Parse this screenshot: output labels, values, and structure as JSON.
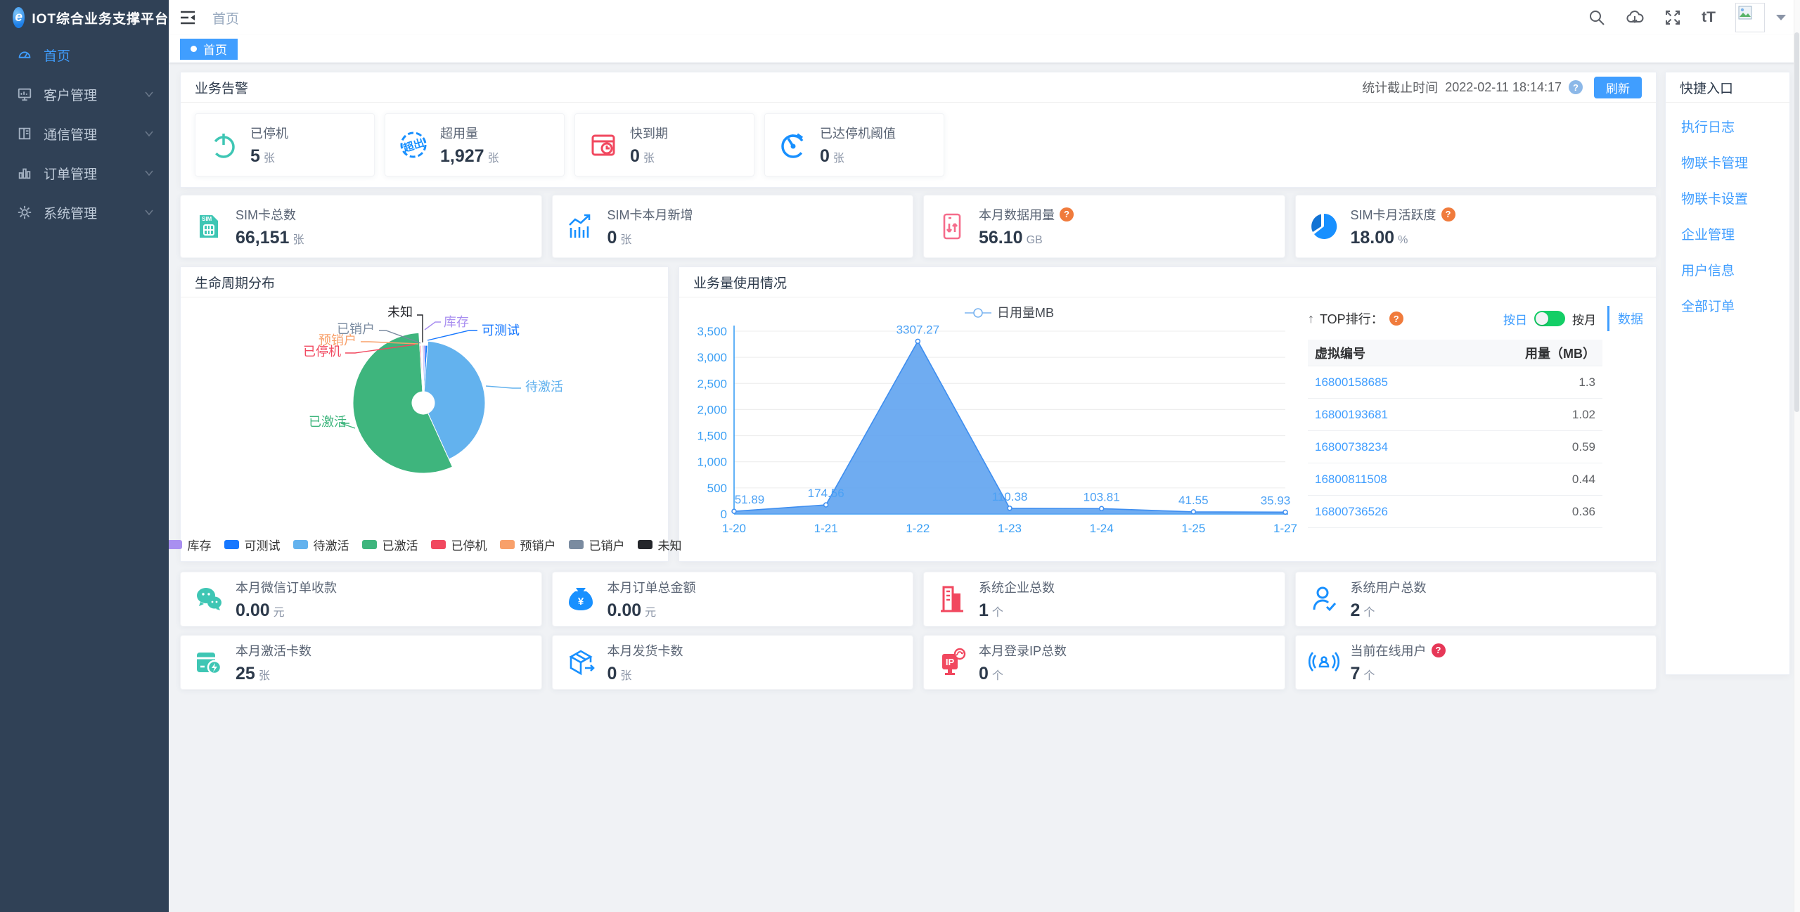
{
  "app": {
    "title": "IOT综合业务支撑平台",
    "logo_letter": "e"
  },
  "colors": {
    "accent": "#409eff",
    "sidebar_bg": "#304156",
    "toggle_on": "#13ce66",
    "axis_blue": "#3a9ff5",
    "area_fill": "#5ba0ef",
    "area_line": "#3e8ef0"
  },
  "sidebar": {
    "items": [
      {
        "label": "首页"
      },
      {
        "label": "客户管理"
      },
      {
        "label": "通信管理"
      },
      {
        "label": "订单管理"
      },
      {
        "label": "系统管理"
      }
    ]
  },
  "topbar": {
    "breadcrumb": "首页",
    "fontsize_tool": "tT"
  },
  "tabs": {
    "active": "首页"
  },
  "alert_panel": {
    "title": "业务告警",
    "stat_time_label": "统计截止时间",
    "stat_time": "2022-02-11 18:14:17",
    "refresh_label": "刷新",
    "items": [
      {
        "label": "已停机",
        "value": "5",
        "unit": "张"
      },
      {
        "label": "超用量",
        "value": "1,927",
        "unit": "张"
      },
      {
        "label": "快到期",
        "value": "0",
        "unit": "张"
      },
      {
        "label": "已达停机阈值",
        "value": "0",
        "unit": "张"
      }
    ]
  },
  "sim_stats": [
    {
      "label": "SIM卡总数",
      "value": "66,151",
      "unit": "张"
    },
    {
      "label": "SIM卡本月新增",
      "value": "0",
      "unit": "张"
    },
    {
      "label": "本月数据用量",
      "value": "56.10",
      "unit": "GB"
    },
    {
      "label": "SIM卡月活跃度",
      "value": "18.00",
      "unit": "%"
    }
  ],
  "pie_panel": {
    "title": "生命周期分布"
  },
  "usage_panel": {
    "title": "业务量使用情况"
  },
  "top_panel": {
    "arrow": "↑",
    "title": "TOP排行：",
    "toggle_left": "按日",
    "toggle_right": "按月",
    "side_tab": "数据",
    "columns": [
      "虚拟编号",
      "用量（MB）"
    ],
    "rows": [
      [
        "16800158685",
        "1.3"
      ],
      [
        "16800193681",
        "1.02"
      ],
      [
        "16800738234",
        "0.59"
      ],
      [
        "16800811508",
        "0.44"
      ],
      [
        "16800736526",
        "0.36"
      ]
    ]
  },
  "bottom_stats_row1": [
    {
      "label": "本月微信订单收款",
      "value": "0.00",
      "unit": "元"
    },
    {
      "label": "本月订单总金额",
      "value": "0.00",
      "unit": "元"
    },
    {
      "label": "系统企业总数",
      "value": "1",
      "unit": "个"
    },
    {
      "label": "系统用户总数",
      "value": "2",
      "unit": "个"
    }
  ],
  "bottom_stats_row2": [
    {
      "label": "本月激活卡数",
      "value": "25",
      "unit": "张"
    },
    {
      "label": "本月发货卡数",
      "value": "0",
      "unit": "张"
    },
    {
      "label": "本月登录IP总数",
      "value": "0",
      "unit": "个"
    },
    {
      "label": "当前在线用户",
      "value": "7",
      "unit": "个"
    }
  ],
  "quick_links": {
    "title": "快捷入口",
    "links": [
      "执行日志",
      "物联卡管理",
      "物联卡设置",
      "企业管理",
      "用户信息",
      "全部订单"
    ]
  },
  "chart_data": [
    {
      "type": "pie",
      "title": "生命周期分布",
      "legend_position": "bottom",
      "slices": [
        {
          "name": "库存",
          "pct": 0.5,
          "color": "#a98ff0"
        },
        {
          "name": "可测试",
          "pct": 0.7,
          "color": "#1677ff"
        },
        {
          "name": "待激活",
          "pct": 42.0,
          "color": "#63b2ee"
        },
        {
          "name": "已激活",
          "pct": 55.8,
          "color": "#3eb57d"
        },
        {
          "name": "已停机",
          "pct": 0.35,
          "color": "#f1485f"
        },
        {
          "name": "预销户",
          "pct": 0.2,
          "color": "#f8a06a"
        },
        {
          "name": "已销户",
          "pct": 0.25,
          "color": "#7a8ba0"
        },
        {
          "name": "未知",
          "pct": 0.2,
          "color": "#24262b"
        }
      ]
    },
    {
      "type": "area",
      "legend": "日用量MB",
      "categories": [
        "1-20",
        "1-21",
        "1-22",
        "1-23",
        "1-24",
        "1-25",
        "1-27"
      ],
      "values": [
        51.89,
        174.56,
        3307.27,
        110.38,
        103.81,
        41.55,
        35.93
      ],
      "ylim": [
        0,
        3500
      ],
      "yticks": [
        0,
        500,
        1000,
        1500,
        2000,
        2500,
        3000,
        3500
      ],
      "grid": true,
      "legend_position": "top"
    }
  ]
}
